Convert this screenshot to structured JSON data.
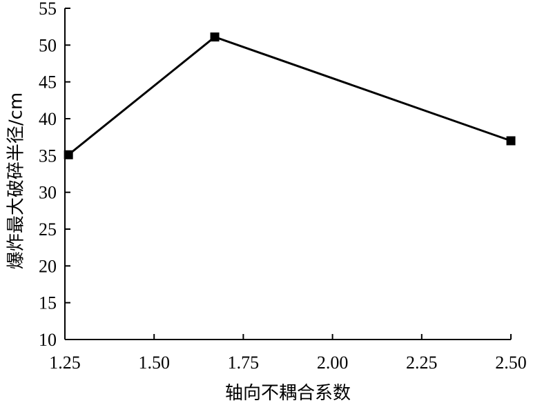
{
  "chart_data": {
    "type": "line",
    "xlabel": "轴向不耦合系数",
    "ylabel": "爆炸最大破碎半径/cm",
    "xlim": [
      1.25,
      2.5
    ],
    "ylim": [
      10,
      55
    ],
    "x_ticks": [
      1.25,
      1.5,
      1.75,
      2.0,
      2.25,
      2.5
    ],
    "x_tick_labels": [
      "1.25",
      "1.50",
      "1.75",
      "2.00",
      "2.25",
      "2.50"
    ],
    "y_ticks": [
      10,
      15,
      20,
      25,
      30,
      35,
      40,
      45,
      50,
      55
    ],
    "y_tick_labels": [
      "10",
      "15",
      "20",
      "25",
      "30",
      "35",
      "40",
      "45",
      "50",
      "55"
    ],
    "grid": false,
    "series": [
      {
        "x": [
          1.26,
          1.67,
          2.5
        ],
        "y": [
          35.1,
          51.1,
          37.0
        ],
        "color": "#000000",
        "marker": "square"
      }
    ]
  }
}
